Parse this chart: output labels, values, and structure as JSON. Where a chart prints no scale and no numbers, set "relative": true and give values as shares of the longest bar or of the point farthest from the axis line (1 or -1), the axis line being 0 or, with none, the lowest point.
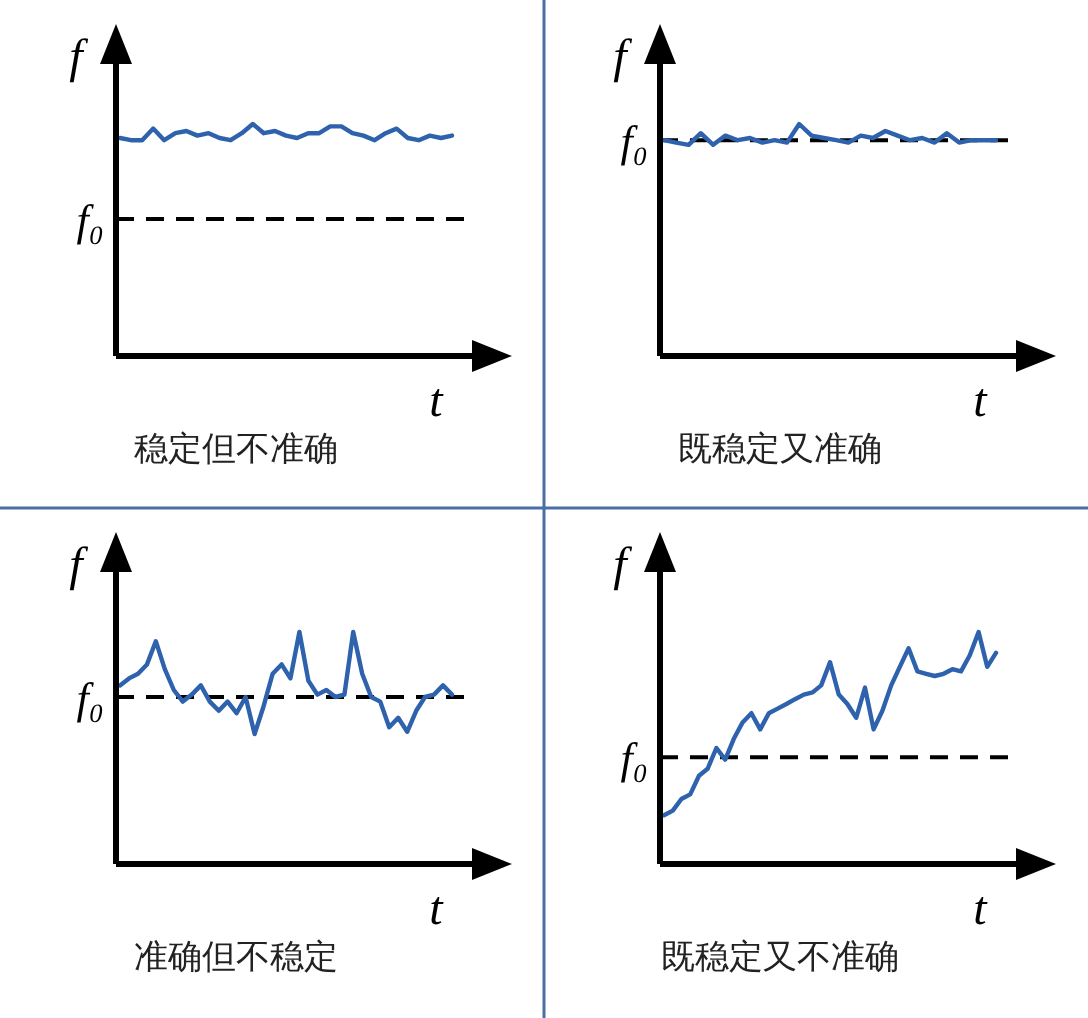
{
  "chart_data": [
    {
      "type": "line",
      "relative": true,
      "xlabel": "t",
      "ylabel": "f",
      "annotations": [
        "稳定但不准确"
      ],
      "categories": [
        null,
        null,
        null,
        null,
        null,
        null,
        null,
        null,
        null,
        null,
        null,
        null,
        null,
        null,
        null,
        null,
        null,
        null,
        null,
        null,
        null,
        null,
        null,
        null,
        null,
        null,
        null,
        null,
        null,
        null,
        null
      ],
      "series": [
        {
          "color": "#2e62ad",
          "values": [
            0.94,
            0.93,
            0.93,
            0.98,
            0.93,
            0.96,
            0.97,
            0.95,
            0.96,
            0.94,
            0.93,
            0.96,
            1.0,
            0.96,
            0.97,
            0.95,
            0.94,
            0.96,
            0.96,
            0.99,
            0.99,
            0.96,
            0.95,
            0.93,
            0.96,
            0.98,
            0.94,
            0.93,
            0.95,
            0.94,
            0.95
          ]
        }
      ],
      "ref_lines": [
        {
          "axis": "y",
          "value": 0.59,
          "label": "f₀",
          "line_style": "dashed",
          "color": "#000000"
        }
      ]
    },
    {
      "type": "line",
      "relative": true,
      "xlabel": "t",
      "ylabel": "f",
      "annotations": [
        "既稳定又准确"
      ],
      "categories": [
        null,
        null,
        null,
        null,
        null,
        null,
        null,
        null,
        null,
        null,
        null,
        null,
        null,
        null,
        null,
        null,
        null,
        null,
        null,
        null,
        null,
        null,
        null,
        null,
        null,
        null,
        null,
        null
      ],
      "series": [
        {
          "color": "#2e62ad",
          "values": [
            0.93,
            0.92,
            0.91,
            0.96,
            0.91,
            0.95,
            0.93,
            0.94,
            0.92,
            0.93,
            0.92,
            1.0,
            0.95,
            0.94,
            0.93,
            0.92,
            0.95,
            0.94,
            0.97,
            0.95,
            0.93,
            0.94,
            0.92,
            0.96,
            0.92,
            0.93,
            0.93,
            0.93
          ]
        }
      ],
      "ref_lines": [
        {
          "axis": "y",
          "value": 0.93,
          "label": "f₀",
          "line_style": "dashed",
          "color": "#000000"
        }
      ]
    },
    {
      "type": "line",
      "relative": true,
      "xlabel": "t",
      "ylabel": "f",
      "annotations": [
        "准确但不稳定"
      ],
      "categories": [
        null,
        null,
        null,
        null,
        null,
        null,
        null,
        null,
        null,
        null,
        null,
        null,
        null,
        null,
        null,
        null,
        null,
        null,
        null,
        null,
        null,
        null,
        null,
        null,
        null,
        null,
        null,
        null,
        null,
        null,
        null,
        null,
        null,
        null,
        null,
        null,
        null,
        null
      ],
      "series": [
        {
          "color": "#2e62ad",
          "values": [
            0.77,
            0.8,
            0.82,
            0.86,
            0.96,
            0.84,
            0.75,
            0.7,
            0.73,
            0.77,
            0.7,
            0.66,
            0.7,
            0.65,
            0.72,
            0.56,
            0.68,
            0.82,
            0.86,
            0.8,
            1.0,
            0.79,
            0.73,
            0.75,
            0.72,
            0.73,
            1.0,
            0.82,
            0.72,
            0.7,
            0.59,
            0.63,
            0.57,
            0.66,
            0.72,
            0.73,
            0.77,
            0.73
          ]
        }
      ],
      "ref_lines": [
        {
          "axis": "y",
          "value": 0.72,
          "label": "f₀",
          "line_style": "dashed",
          "color": "#000000"
        }
      ]
    },
    {
      "type": "line",
      "relative": true,
      "xlabel": "t",
      "ylabel": "f",
      "annotations": [
        "既稳定又不准确"
      ],
      "categories": [
        null,
        null,
        null,
        null,
        null,
        null,
        null,
        null,
        null,
        null,
        null,
        null,
        null,
        null,
        null,
        null,
        null,
        null,
        null,
        null,
        null,
        null,
        null,
        null,
        null,
        null,
        null,
        null,
        null,
        null,
        null,
        null,
        null,
        null,
        null,
        null,
        null,
        null,
        null
      ],
      "series": [
        {
          "color": "#2e62ad",
          "values": [
            0.21,
            0.23,
            0.28,
            0.3,
            0.38,
            0.41,
            0.5,
            0.45,
            0.54,
            0.61,
            0.65,
            0.58,
            0.65,
            0.67,
            0.69,
            0.71,
            0.73,
            0.74,
            0.77,
            0.87,
            0.73,
            0.69,
            0.63,
            0.76,
            0.58,
            0.66,
            0.77,
            0.85,
            0.93,
            0.83,
            0.82,
            0.81,
            0.82,
            0.84,
            0.83,
            0.9,
            1.0,
            0.85,
            0.91
          ]
        }
      ],
      "ref_lines": [
        {
          "axis": "y",
          "value": 0.46,
          "label": "f₀",
          "line_style": "dashed",
          "color": "#000000"
        }
      ]
    }
  ]
}
